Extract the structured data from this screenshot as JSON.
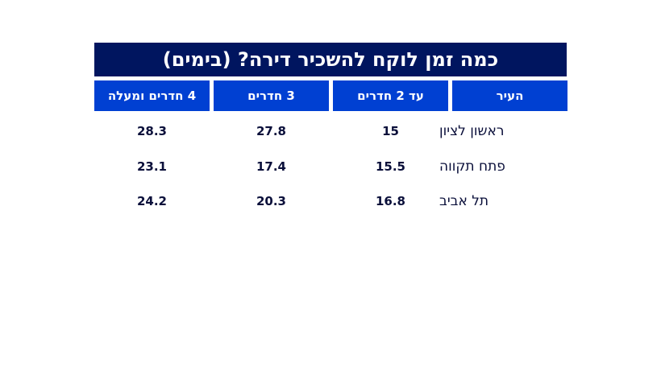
{
  "title": "כמה זמן לוקח להשכיר דירה? (בימים)",
  "headers": [
    "העיר",
    "עד 2 חדרים",
    "3 חדרים",
    "4 חדרים ומעלה"
  ],
  "rows": [
    {
      "city": "ראשון לציון",
      "values": [
        "15",
        "27.8",
        "28.3"
      ]
    },
    {
      "city": "פתח תקווה",
      "values": [
        "15.5",
        "17.4",
        "23.1"
      ]
    },
    {
      "city": "תל אביב",
      "values": [
        "16.8",
        "20.3",
        "24.2"
      ]
    }
  ],
  "colors": {
    "title_bg": "#00155f",
    "header_bg": "#0040d2",
    "text": "#0a0f3a"
  }
}
